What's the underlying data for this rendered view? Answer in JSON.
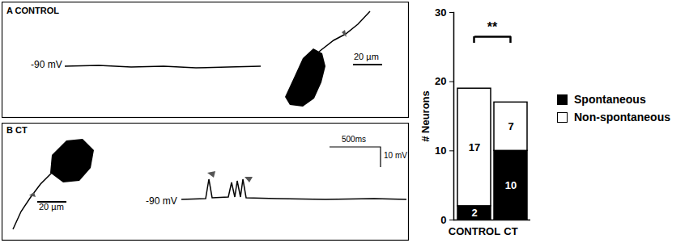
{
  "chart_data": {
    "type": "bar",
    "stacked": true,
    "y_label": "# Neurons",
    "categories": [
      "CONTROL",
      "CT"
    ],
    "series": [
      {
        "name": "Spontaneous",
        "color": "#000000",
        "values": [
          2,
          10
        ]
      },
      {
        "name": "Non-spontaneous",
        "color": "#ffffff",
        "values": [
          17,
          7
        ]
      }
    ],
    "ylim": [
      0,
      30
    ],
    "yticks": [
      0,
      10,
      20,
      30
    ],
    "data_labels": true,
    "legend": "right",
    "annotations": [
      {
        "text": "**",
        "from": "CONTROL",
        "to": "CT",
        "y": 26.5
      }
    ]
  },
  "panels": [
    {
      "label": "A",
      "title": "CONTROL",
      "potential": "-90 mV",
      "scale_bar": "20 µm"
    },
    {
      "label": "B",
      "title": "CT",
      "potential": "-90 mV",
      "scale_bar": "20 µm",
      "time_bar": "500ms",
      "voltage_bar": "10 mV"
    }
  ]
}
